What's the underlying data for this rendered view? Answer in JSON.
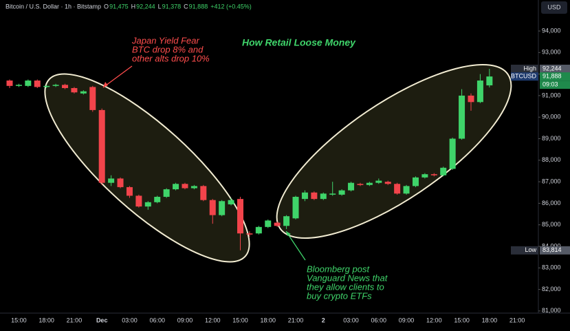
{
  "chart_data": {
    "type": "candlestick",
    "header": {
      "symbol": "Bitcoin / U.S. Dollar · 1h · Bitstamp",
      "ohlc": [
        {
          "key": "O",
          "value": "91,475"
        },
        {
          "key": "H",
          "value": "92,244"
        },
        {
          "key": "L",
          "value": "91,378"
        },
        {
          "key": "C",
          "value": "91,888"
        }
      ],
      "change": "+412 (+0.45%)"
    },
    "currency": "USD",
    "title": "How Retail Loose Money",
    "annotations": [
      {
        "lines": [
          "Japan Yield Fear",
          "BTC drop 8% and",
          "other alts drop 10%"
        ],
        "color": "#ff4d4d"
      },
      {
        "lines": [
          "Bloomberg post",
          "Vanguard News that",
          "they allow clients to",
          "buy crypto ETFs"
        ],
        "color": "#3fd46a"
      }
    ],
    "up_color": "#3fd46a",
    "down_color": "#f2444b",
    "categories": [
      null,
      "15:00",
      null,
      null,
      "18:00",
      null,
      null,
      "21:00",
      null,
      null,
      "Dec",
      null,
      null,
      "03:00",
      null,
      null,
      "06:00",
      null,
      null,
      "09:00",
      null,
      null,
      "12:00",
      null,
      null,
      "15:00",
      null,
      null,
      "18:00",
      null,
      null,
      "21:00",
      null,
      null,
      "2",
      null,
      null,
      "03:00",
      null,
      null,
      "06:00",
      null,
      null,
      "09:00",
      null,
      null,
      "12:00",
      null,
      null,
      "15:00",
      null,
      null,
      "18:00",
      null,
      null,
      "21:00",
      null
    ],
    "open": [
      91700,
      91450,
      91450,
      91700,
      91400,
      91450,
      91500,
      91350,
      91100,
      91400,
      90330,
      86950,
      87150,
      86750,
      86350,
      85850,
      86050,
      86300,
      86650,
      86900,
      86700,
      86800,
      86150,
      85450,
      85950,
      86200,
      84600,
      84600,
      84900,
      85100,
      84950,
      85300,
      86200,
      86500,
      86200,
      86400,
      86400,
      86600,
      86900,
      86850,
      86950,
      87000,
      86900,
      86450,
      86800,
      87200,
      87350,
      87300,
      87600,
      89000,
      91000,
      90700,
      91475,
      null,
      null,
      null,
      null
    ],
    "high": [
      91750,
      91550,
      91750,
      91750,
      91500,
      91550,
      91550,
      91400,
      91250,
      91450,
      90400,
      87300,
      87200,
      86800,
      86400,
      86100,
      86350,
      86700,
      86950,
      86950,
      86850,
      86850,
      86200,
      86150,
      86250,
      86300,
      84700,
      84950,
      85250,
      85150,
      85450,
      86350,
      86600,
      86550,
      86500,
      87000,
      86650,
      87000,
      86950,
      87000,
      87150,
      87050,
      86950,
      86850,
      87250,
      87400,
      87400,
      87700,
      89050,
      91300,
      91100,
      92000,
      92244,
      null,
      null,
      null,
      null
    ],
    "low": [
      91350,
      91400,
      91400,
      91350,
      91350,
      91400,
      91300,
      91100,
      91050,
      90250,
      86850,
      86800,
      86700,
      86250,
      85800,
      85700,
      86000,
      86250,
      86600,
      86650,
      86650,
      86100,
      85050,
      85400,
      85900,
      83814,
      84450,
      84550,
      84850,
      84900,
      84800,
      85250,
      86100,
      86150,
      86150,
      86350,
      86350,
      86550,
      86800,
      86800,
      86900,
      86850,
      86400,
      86400,
      86750,
      87150,
      87250,
      87250,
      87550,
      88950,
      90300,
      90650,
      91378,
      null,
      null,
      null,
      null
    ],
    "close": [
      91450,
      91500,
      91700,
      91400,
      91450,
      91500,
      91350,
      91150,
      91200,
      90330,
      86950,
      87150,
      86750,
      86350,
      85850,
      86050,
      86300,
      86650,
      86900,
      86700,
      86800,
      86150,
      85450,
      86100,
      86150,
      84600,
      84550,
      84900,
      85200,
      84950,
      85400,
      86300,
      86500,
      86200,
      86450,
      86450,
      86600,
      86950,
      86850,
      86950,
      87050,
      86900,
      86450,
      86800,
      87200,
      87350,
      87300,
      87650,
      89000,
      91000,
      90700,
      91700,
      91888,
      null,
      null,
      null,
      null
    ],
    "ylim": [
      80900,
      95440
    ],
    "yticks": [
      {
        "value": 81000,
        "label": "81,000"
      },
      {
        "value": 82000,
        "label": "82,000"
      },
      {
        "value": 83000,
        "label": "83,000"
      },
      {
        "value": 84000,
        "label": "84,000"
      },
      {
        "value": 85000,
        "label": "85,000"
      },
      {
        "value": 86000,
        "label": "86,000"
      },
      {
        "value": 87000,
        "label": "87,000"
      },
      {
        "value": 88000,
        "label": "88,000"
      },
      {
        "value": 89000,
        "label": "89,000"
      },
      {
        "value": 90000,
        "label": "90,000"
      },
      {
        "value": 91000,
        "label": "91,000"
      },
      {
        "value": 92000,
        "label": "92,000"
      },
      {
        "value": 93000,
        "label": "93,000"
      },
      {
        "value": 94000,
        "label": "94,000"
      }
    ],
    "price_tags": [
      {
        "name": "High",
        "value": 92244,
        "value_label": "92,244",
        "color": "#555a66"
      },
      {
        "name": "BTCUSD",
        "value": 91888,
        "value_label": "91,888",
        "timer": "09:03",
        "color": "#1f8a4c"
      },
      {
        "name": "Low",
        "value": 83814,
        "value_label": "83,814",
        "color": "#555a66"
      }
    ]
  }
}
